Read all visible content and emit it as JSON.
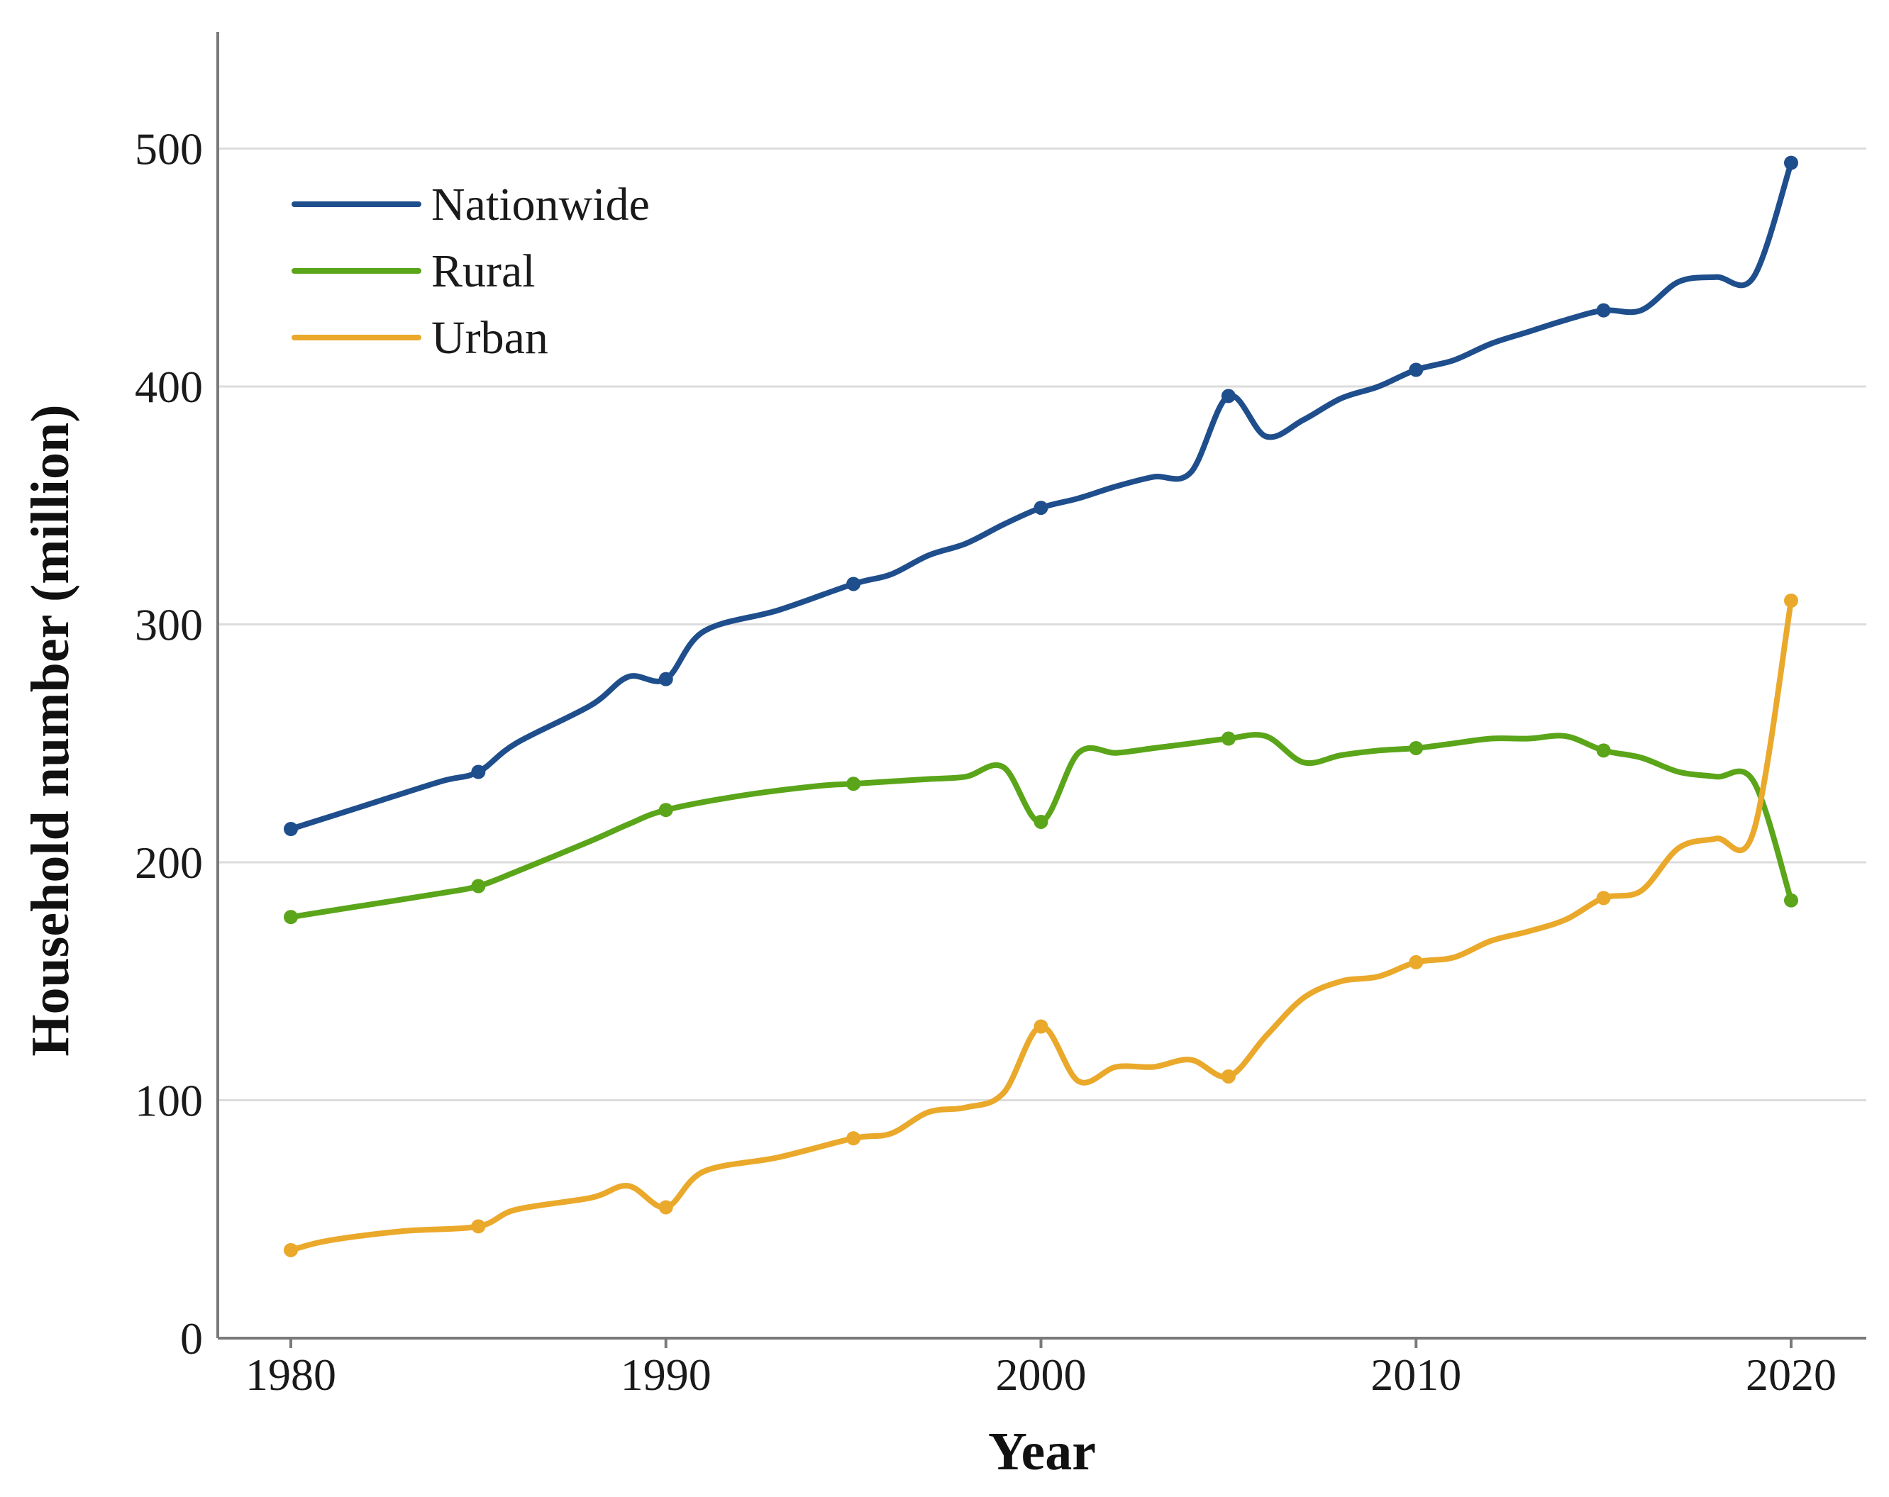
{
  "chart_data": {
    "type": "line",
    "title": "",
    "xlabel": "Year",
    "ylabel": "Household number (million)",
    "xlim": [
      1978,
      2022
    ],
    "ylim": [
      0,
      550
    ],
    "x_ticks": [
      1980,
      1990,
      2000,
      2010,
      2020
    ],
    "y_ticks": [
      0,
      100,
      200,
      300,
      400,
      500
    ],
    "grid": "horizontal",
    "legend_position": "top-left",
    "series": [
      {
        "name": "Nationwide",
        "color": "#1f4e8c",
        "x": [
          1980,
          1982,
          1984,
          1985,
          1986,
          1988,
          1989,
          1990,
          1991,
          1993,
          1995,
          1996,
          1997,
          1998,
          1999,
          2000,
          2001,
          2002,
          2003,
          2004,
          2005,
          2006,
          2007,
          2008,
          2009,
          2010,
          2011,
          2012,
          2013,
          2014,
          2015,
          2016,
          2017,
          2018,
          2019,
          2020
        ],
        "values": [
          214,
          224,
          234,
          238,
          250,
          266,
          278,
          277,
          297,
          306,
          317,
          321,
          329,
          334,
          342,
          349,
          353,
          358,
          362,
          364,
          396,
          379,
          386,
          395,
          400,
          407,
          411,
          418,
          423,
          428,
          432,
          432,
          444,
          446,
          446,
          494
        ],
        "markers": [
          1980,
          1985,
          1990,
          1995,
          2000,
          2005,
          2010,
          2015,
          2020
        ]
      },
      {
        "name": "Rural",
        "color": "#5aa519",
        "x": [
          1980,
          1982,
          1984,
          1985,
          1986,
          1988,
          1989,
          1990,
          1992,
          1994,
          1995,
          1996,
          1997,
          1998,
          1999,
          2000,
          2001,
          2002,
          2003,
          2004,
          2005,
          2006,
          2007,
          2008,
          2009,
          2010,
          2011,
          2012,
          2013,
          2014,
          2015,
          2016,
          2017,
          2018,
          2019,
          2020
        ],
        "values": [
          177,
          182,
          187,
          190,
          196,
          209,
          216,
          222,
          228,
          232,
          233,
          234,
          235,
          236,
          240,
          217,
          246,
          246,
          248,
          250,
          252,
          253,
          242,
          245,
          247,
          248,
          250,
          252,
          252,
          253,
          247,
          244,
          238,
          236,
          234,
          184
        ],
        "markers": [
          1980,
          1985,
          1990,
          1995,
          2000,
          2005,
          2010,
          2015,
          2020
        ]
      },
      {
        "name": "Urban",
        "color": "#eaa92b",
        "x": [
          1980,
          1981,
          1983,
          1985,
          1986,
          1988,
          1989,
          1990,
          1991,
          1993,
          1995,
          1996,
          1997,
          1998,
          1999,
          2000,
          2001,
          2002,
          2003,
          2004,
          2005,
          2006,
          2007,
          2008,
          2009,
          2010,
          2011,
          2012,
          2013,
          2014,
          2015,
          2016,
          2017,
          2018,
          2019,
          2020
        ],
        "values": [
          37,
          41,
          45,
          47,
          54,
          59,
          64,
          55,
          70,
          76,
          84,
          86,
          95,
          97,
          103,
          131,
          108,
          114,
          114,
          117,
          110,
          127,
          143,
          150,
          152,
          158,
          160,
          167,
          171,
          176,
          185,
          188,
          206,
          210,
          213,
          310
        ],
        "markers": [
          1980,
          1985,
          1990,
          1995,
          2000,
          2005,
          2010,
          2015,
          2020
        ]
      }
    ]
  }
}
